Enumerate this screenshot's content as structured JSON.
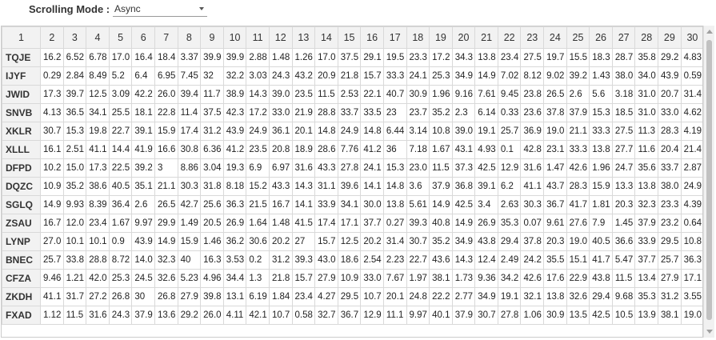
{
  "toolbar": {
    "label": "Scrolling Mode :",
    "mode_value": "Async"
  },
  "grid": {
    "corner_header": "1",
    "column_headers": [
      "2",
      "3",
      "4",
      "5",
      "6",
      "7",
      "8",
      "9",
      "10",
      "11",
      "12",
      "13",
      "14",
      "15",
      "16",
      "17",
      "18",
      "19",
      "20",
      "21",
      "22",
      "23",
      "24",
      "25",
      "26",
      "27",
      "28",
      "29",
      "30"
    ],
    "rows": [
      {
        "label": "TQJE",
        "cells": [
          "16.2",
          "6.52",
          "6.78",
          "17.0",
          "16.4",
          "18.4",
          "3.37",
          "39.9",
          "39.9",
          "2.88",
          "1.48",
          "1.26",
          "17.0",
          "37.5",
          "29.1",
          "19.5",
          "23.3",
          "17.2",
          "34.3",
          "13.8",
          "23.4",
          "27.5",
          "19.7",
          "15.5",
          "18.3",
          "28.7",
          "35.8",
          "29.2",
          "4.83"
        ]
      },
      {
        "label": "IJYF",
        "cells": [
          "0.29",
          "2.84",
          "8.49",
          "5.2",
          "6.4",
          "6.95",
          "7.45",
          "32",
          "32.2",
          "3.03",
          "24.3",
          "43.2",
          "20.9",
          "21.8",
          "15.7",
          "33.3",
          "24.1",
          "25.3",
          "34.9",
          "14.9",
          "7.02",
          "8.12",
          "9.02",
          "39.2",
          "1.43",
          "38.0",
          "34.0",
          "43.9",
          "0.59"
        ]
      },
      {
        "label": "JWID",
        "cells": [
          "17.3",
          "39.7",
          "12.5",
          "3.09",
          "42.2",
          "26.0",
          "39.4",
          "11.7",
          "38.9",
          "14.3",
          "39.0",
          "23.5",
          "11.5",
          "2.53",
          "22.1",
          "40.7",
          "30.9",
          "1.96",
          "9.16",
          "7.61",
          "9.45",
          "23.8",
          "26.5",
          "2.6",
          "5.6",
          "3.18",
          "31.0",
          "20.7",
          "31.4"
        ]
      },
      {
        "label": "SNVB",
        "cells": [
          "4.13",
          "36.5",
          "34.1",
          "25.5",
          "18.1",
          "22.8",
          "11.4",
          "37.5",
          "42.3",
          "17.2",
          "33.0",
          "21.9",
          "28.8",
          "33.7",
          "33.5",
          "23",
          "23.7",
          "35.2",
          "2.3",
          "6.14",
          "0.33",
          "23.6",
          "37.8",
          "37.9",
          "15.3",
          "18.5",
          "31.0",
          "33.0",
          "4.62"
        ]
      },
      {
        "label": "XKLR",
        "cells": [
          "30.7",
          "15.3",
          "19.8",
          "22.7",
          "39.1",
          "15.9",
          "17.4",
          "31.2",
          "43.9",
          "24.9",
          "36.1",
          "20.1",
          "14.8",
          "24.9",
          "14.8",
          "6.44",
          "3.14",
          "10.8",
          "39.0",
          "19.1",
          "25.7",
          "36.9",
          "19.0",
          "21.1",
          "33.3",
          "27.5",
          "11.3",
          "28.3",
          "4.19"
        ]
      },
      {
        "label": "XLLL",
        "cells": [
          "16.1",
          "2.51",
          "41.1",
          "14.4",
          "41.9",
          "16.6",
          "30.8",
          "6.36",
          "41.2",
          "23.5",
          "20.8",
          "18.9",
          "28.6",
          "7.76",
          "41.2",
          "36",
          "7.18",
          "1.67",
          "43.1",
          "4.93",
          "0.1",
          "42.8",
          "23.1",
          "33.3",
          "13.8",
          "27.7",
          "11.6",
          "20.4",
          "21.4"
        ]
      },
      {
        "label": "DFPD",
        "cells": [
          "10.2",
          "15.0",
          "17.3",
          "22.5",
          "39.2",
          "3",
          "8.86",
          "3.04",
          "19.3",
          "6.9",
          "6.97",
          "31.6",
          "43.3",
          "27.8",
          "24.1",
          "15.3",
          "23.0",
          "11.5",
          "37.3",
          "42.5",
          "12.9",
          "31.6",
          "1.47",
          "42.6",
          "1.96",
          "24.7",
          "35.6",
          "33.7",
          "2.87"
        ]
      },
      {
        "label": "DQZC",
        "cells": [
          "10.9",
          "35.2",
          "38.6",
          "40.5",
          "35.1",
          "21.1",
          "30.3",
          "31.8",
          "8.18",
          "15.2",
          "43.3",
          "14.3",
          "31.1",
          "39.6",
          "14.1",
          "14.8",
          "3.6",
          "37.9",
          "36.8",
          "39.1",
          "6.2",
          "41.1",
          "43.7",
          "28.3",
          "15.9",
          "13.3",
          "13.8",
          "38.0",
          "24.9"
        ]
      },
      {
        "label": "SGLQ",
        "cells": [
          "14.9",
          "9.93",
          "8.39",
          "36.4",
          "2.6",
          "26.5",
          "42.7",
          "25.6",
          "36.3",
          "21.5",
          "16.7",
          "14.1",
          "33.9",
          "34.1",
          "30.0",
          "13.8",
          "5.61",
          "14.9",
          "42.5",
          "3.4",
          "2.63",
          "30.3",
          "36.7",
          "41.7",
          "1.81",
          "20.3",
          "32.3",
          "23.3",
          "4.39"
        ]
      },
      {
        "label": "ZSAU",
        "cells": [
          "16.7",
          "12.0",
          "23.4",
          "1.67",
          "9.97",
          "29.9",
          "1.49",
          "20.5",
          "26.9",
          "1.64",
          "1.48",
          "41.5",
          "17.4",
          "17.1",
          "37.7",
          "0.27",
          "39.3",
          "40.8",
          "14.9",
          "26.9",
          "35.3",
          "0.07",
          "9.61",
          "27.6",
          "7.9",
          "1.45",
          "37.9",
          "23.2",
          "0.64"
        ]
      },
      {
        "label": "LYNP",
        "cells": [
          "27.0",
          "10.1",
          "10.1",
          "0.9",
          "43.9",
          "14.9",
          "15.9",
          "1.46",
          "36.2",
          "30.6",
          "20.2",
          "27",
          "15.7",
          "12.5",
          "20.2",
          "31.4",
          "30.7",
          "35.2",
          "34.9",
          "43.8",
          "29.4",
          "37.8",
          "20.3",
          "19.0",
          "40.5",
          "36.6",
          "33.9",
          "29.5",
          "10.8"
        ]
      },
      {
        "label": "BNEC",
        "cells": [
          "25.7",
          "33.8",
          "28.8",
          "8.72",
          "14.0",
          "32.3",
          "40",
          "16.3",
          "3.53",
          "0.2",
          "31.2",
          "39.3",
          "43.0",
          "18.6",
          "2.54",
          "2.23",
          "22.7",
          "43.6",
          "14.3",
          "12.4",
          "2.49",
          "24.2",
          "35.5",
          "15.1",
          "41.7",
          "5.47",
          "37.7",
          "25.7",
          "36.3"
        ]
      },
      {
        "label": "CFZA",
        "cells": [
          "9.46",
          "1.21",
          "42.0",
          "25.3",
          "24.5",
          "32.6",
          "5.23",
          "4.96",
          "34.4",
          "1.3",
          "21.8",
          "15.7",
          "27.9",
          "10.9",
          "33.0",
          "7.67",
          "1.97",
          "38.1",
          "1.73",
          "9.36",
          "34.2",
          "42.6",
          "17.6",
          "22.9",
          "43.8",
          "11.5",
          "13.4",
          "27.9",
          "17.1"
        ]
      },
      {
        "label": "ZKDH",
        "cells": [
          "41.1",
          "31.7",
          "27.2",
          "26.8",
          "30",
          "26.8",
          "27.9",
          "39.8",
          "13.1",
          "6.19",
          "1.84",
          "23.4",
          "4.27",
          "29.5",
          "10.7",
          "20.1",
          "24.8",
          "22.2",
          "2.77",
          "34.9",
          "19.1",
          "32.1",
          "13.8",
          "32.6",
          "29.4",
          "9.68",
          "35.3",
          "31.2",
          "3.55"
        ]
      },
      {
        "label": "FXAD",
        "cells": [
          "1.12",
          "11.5",
          "31.6",
          "24.3",
          "37.9",
          "13.6",
          "29.2",
          "26.0",
          "4.11",
          "42.1",
          "10.7",
          "0.58",
          "32.7",
          "36.7",
          "12.9",
          "11.1",
          "9.97",
          "40.1",
          "37.9",
          "30.7",
          "27.8",
          "1.06",
          "30.9",
          "13.5",
          "42.5",
          "10.5",
          "13.9",
          "38.1",
          "19.0"
        ]
      }
    ]
  },
  "colors": {
    "header_bg": "#f2f2f2",
    "grid_border": "#d9d9d9",
    "scroll_thumb": "#c1c1c1"
  }
}
